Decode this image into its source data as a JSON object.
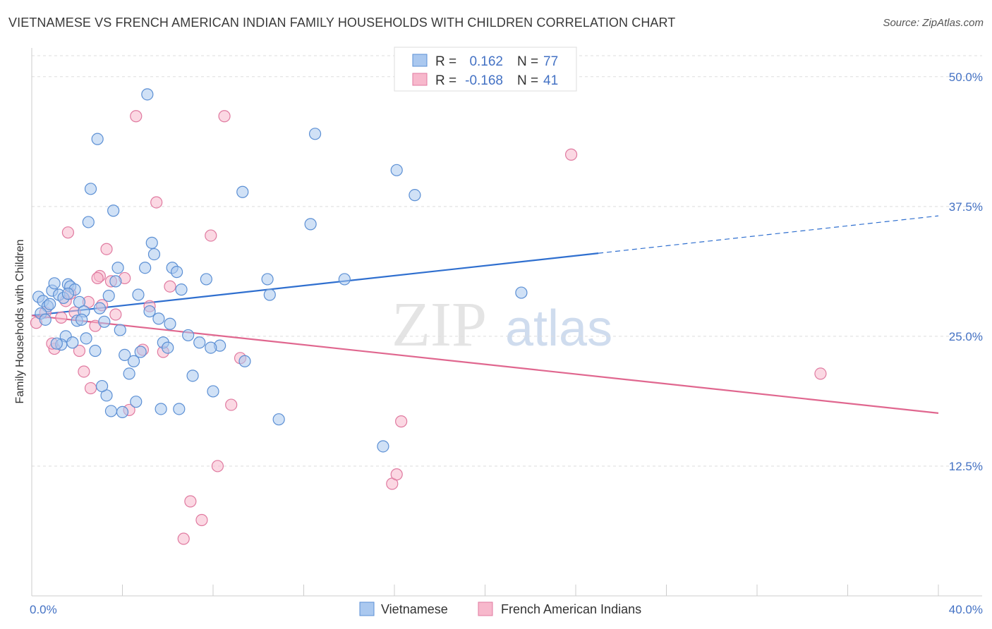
{
  "header": {
    "title": "VIETNAMESE VS FRENCH AMERICAN INDIAN FAMILY HOUSEHOLDS WITH CHILDREN CORRELATION CHART",
    "source": "Source: ZipAtlas.com"
  },
  "watermark": {
    "zip": "ZIP",
    "atlas": "atlas"
  },
  "colors": {
    "blue_fill": "#aac8ef",
    "blue_stroke": "#5b8fd4",
    "blue_line": "#2f6fcf",
    "pink_fill": "#f7b8cc",
    "pink_stroke": "#e07aa0",
    "pink_line": "#e0678f",
    "tick_label": "#4472c4",
    "grid": "#dddddd"
  },
  "legend": {
    "row1": {
      "r_label": "R =",
      "r_value": "0.162",
      "n_label": "N =",
      "n_value": "77"
    },
    "row2": {
      "r_label": "R =",
      "r_value": "-0.168",
      "n_label": "N =",
      "n_value": "41"
    }
  },
  "chart_data": {
    "type": "scatter",
    "xlabel": "",
    "ylabel": "Family Households with Children",
    "xlim": [
      0,
      40
    ],
    "ylim": [
      0,
      52.5
    ],
    "x_tick_labels": [
      {
        "value": 0,
        "label": "0.0%"
      },
      {
        "value": 40,
        "label": "40.0%"
      }
    ],
    "y_tick_labels": [
      {
        "value": 12.5,
        "label": "12.5%"
      },
      {
        "value": 25,
        "label": "25.0%"
      },
      {
        "value": 37.5,
        "label": "37.5%"
      },
      {
        "value": 50,
        "label": "50.0%"
      }
    ],
    "grid": "horizontal dashed",
    "legend_position": "top-center",
    "series": [
      {
        "name": "Vietnamese",
        "color": "#aac8ef",
        "trend": {
          "x": [
            0,
            25
          ],
          "y": [
            27.0,
            33.0
          ],
          "dashed_to": [
            40,
            36.6
          ]
        },
        "points": [
          [
            0.3,
            28.8
          ],
          [
            0.5,
            28.4
          ],
          [
            0.7,
            27.9
          ],
          [
            0.4,
            27.2
          ],
          [
            0.6,
            26.6
          ],
          [
            0.9,
            29.4
          ],
          [
            1.0,
            30.1
          ],
          [
            1.2,
            29.0
          ],
          [
            1.4,
            28.7
          ],
          [
            1.6,
            30.0
          ],
          [
            1.7,
            29.8
          ],
          [
            1.9,
            29.5
          ],
          [
            2.1,
            28.3
          ],
          [
            2.3,
            27.4
          ],
          [
            2.0,
            26.5
          ],
          [
            1.5,
            25.0
          ],
          [
            1.3,
            24.2
          ],
          [
            1.8,
            24.4
          ],
          [
            2.4,
            24.8
          ],
          [
            2.8,
            23.6
          ],
          [
            3.0,
            27.7
          ],
          [
            3.2,
            26.4
          ],
          [
            3.4,
            28.9
          ],
          [
            3.7,
            30.3
          ],
          [
            3.9,
            25.6
          ],
          [
            4.1,
            23.2
          ],
          [
            4.3,
            21.4
          ],
          [
            4.5,
            22.6
          ],
          [
            4.8,
            23.5
          ],
          [
            5.0,
            31.6
          ],
          [
            5.2,
            27.4
          ],
          [
            5.4,
            32.9
          ],
          [
            5.6,
            26.7
          ],
          [
            5.8,
            24.4
          ],
          [
            6.0,
            23.9
          ],
          [
            6.2,
            31.6
          ],
          [
            6.4,
            31.2
          ],
          [
            6.6,
            29.5
          ],
          [
            6.9,
            25.1
          ],
          [
            7.1,
            21.2
          ],
          [
            7.4,
            24.4
          ],
          [
            7.7,
            30.5
          ],
          [
            8.0,
            19.7
          ],
          [
            2.5,
            36.0
          ],
          [
            3.6,
            37.1
          ],
          [
            2.6,
            39.2
          ],
          [
            2.9,
            44.0
          ],
          [
            5.1,
            48.3
          ],
          [
            9.3,
            38.9
          ],
          [
            10.4,
            30.5
          ],
          [
            10.5,
            29.0
          ],
          [
            12.3,
            35.8
          ],
          [
            12.5,
            44.5
          ],
          [
            13.8,
            30.5
          ],
          [
            16.1,
            41.0
          ],
          [
            16.9,
            38.6
          ],
          [
            15.5,
            14.4
          ],
          [
            21.6,
            29.2
          ],
          [
            8.3,
            24.1
          ],
          [
            3.3,
            19.3
          ],
          [
            3.1,
            20.2
          ],
          [
            3.5,
            17.8
          ],
          [
            4.0,
            17.7
          ],
          [
            4.6,
            18.7
          ],
          [
            5.7,
            18.0
          ],
          [
            6.5,
            18.0
          ],
          [
            10.9,
            17.0
          ],
          [
            1.1,
            24.3
          ],
          [
            0.8,
            28.1
          ],
          [
            1.6,
            29.1
          ],
          [
            2.2,
            26.6
          ],
          [
            5.3,
            34.0
          ],
          [
            3.8,
            31.6
          ],
          [
            4.7,
            29.0
          ],
          [
            6.1,
            26.2
          ],
          [
            7.9,
            23.9
          ],
          [
            9.4,
            22.6
          ]
        ]
      },
      {
        "name": "French American Indians",
        "color": "#f7b8cc",
        "trend": {
          "x": [
            0,
            40
          ],
          "y": [
            27.0,
            17.6
          ]
        },
        "points": [
          [
            0.2,
            26.3
          ],
          [
            0.6,
            27.3
          ],
          [
            1.0,
            23.8
          ],
          [
            1.3,
            26.8
          ],
          [
            1.5,
            28.4
          ],
          [
            1.7,
            29.1
          ],
          [
            1.9,
            27.3
          ],
          [
            2.1,
            23.6
          ],
          [
            2.3,
            21.6
          ],
          [
            2.5,
            28.3
          ],
          [
            2.6,
            20.0
          ],
          [
            2.8,
            26.0
          ],
          [
            3.0,
            30.8
          ],
          [
            3.1,
            28.0
          ],
          [
            3.3,
            33.4
          ],
          [
            3.5,
            30.3
          ],
          [
            3.7,
            27.1
          ],
          [
            4.1,
            30.6
          ],
          [
            4.3,
            17.9
          ],
          [
            4.6,
            46.2
          ],
          [
            4.9,
            23.7
          ],
          [
            5.2,
            27.9
          ],
          [
            5.5,
            37.9
          ],
          [
            5.8,
            23.5
          ],
          [
            6.1,
            29.8
          ],
          [
            7.0,
            9.1
          ],
          [
            7.5,
            7.3
          ],
          [
            7.9,
            34.7
          ],
          [
            8.2,
            12.5
          ],
          [
            8.5,
            46.2
          ],
          [
            8.8,
            18.4
          ],
          [
            9.2,
            22.9
          ],
          [
            1.6,
            35.0
          ],
          [
            0.9,
            24.3
          ],
          [
            15.9,
            10.8
          ],
          [
            16.1,
            11.7
          ],
          [
            16.3,
            16.8
          ],
          [
            23.8,
            42.5
          ],
          [
            34.8,
            21.4
          ],
          [
            2.9,
            30.6
          ],
          [
            6.7,
            5.5
          ]
        ]
      }
    ]
  }
}
